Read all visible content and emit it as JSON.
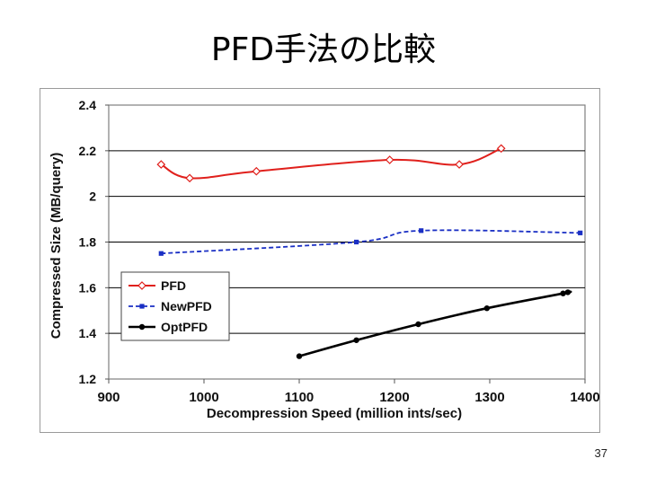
{
  "slide": {
    "title": "PFD手法の比較",
    "page_number": "37"
  },
  "chart_data": {
    "type": "line",
    "title": "",
    "xlabel": "Decompression Speed (million ints/sec)",
    "ylabel": "Compressed Size (MB/query)",
    "xlim": [
      900,
      1400
    ],
    "ylim": [
      1.2,
      2.4
    ],
    "xticks": [
      900,
      1000,
      1100,
      1200,
      1300,
      1400
    ],
    "yticks": [
      1.2,
      1.4,
      1.6,
      1.8,
      2,
      2.2,
      2.4
    ],
    "xtick_labels": [
      "900",
      "1000",
      "1100",
      "1200",
      "1300",
      "1400"
    ],
    "ytick_labels": [
      "1.2",
      "1.4",
      "1.6",
      "1.8",
      "2",
      "2.2",
      "2.4"
    ],
    "grid": "horizontal",
    "legend_position": "bottom-left",
    "series": [
      {
        "name": "PFD",
        "color": "#e0201c",
        "style": "solid",
        "marker": "diamond-open",
        "x": [
          955,
          985,
          1055,
          1195,
          1268,
          1312
        ],
        "y": [
          2.14,
          2.08,
          2.11,
          2.16,
          2.14,
          2.21
        ]
      },
      {
        "name": "NewPFD",
        "color": "#1a2fc4",
        "style": "dashed",
        "marker": "square",
        "x": [
          955,
          1160,
          1228,
          1395
        ],
        "y": [
          1.75,
          1.8,
          1.85,
          1.84
        ]
      },
      {
        "name": "OptPFD",
        "color": "#000000",
        "style": "solid",
        "marker": "circle",
        "x": [
          1100,
          1160,
          1225,
          1297,
          1377,
          1382
        ],
        "y": [
          1.3,
          1.37,
          1.44,
          1.51,
          1.575,
          1.58
        ]
      }
    ]
  }
}
